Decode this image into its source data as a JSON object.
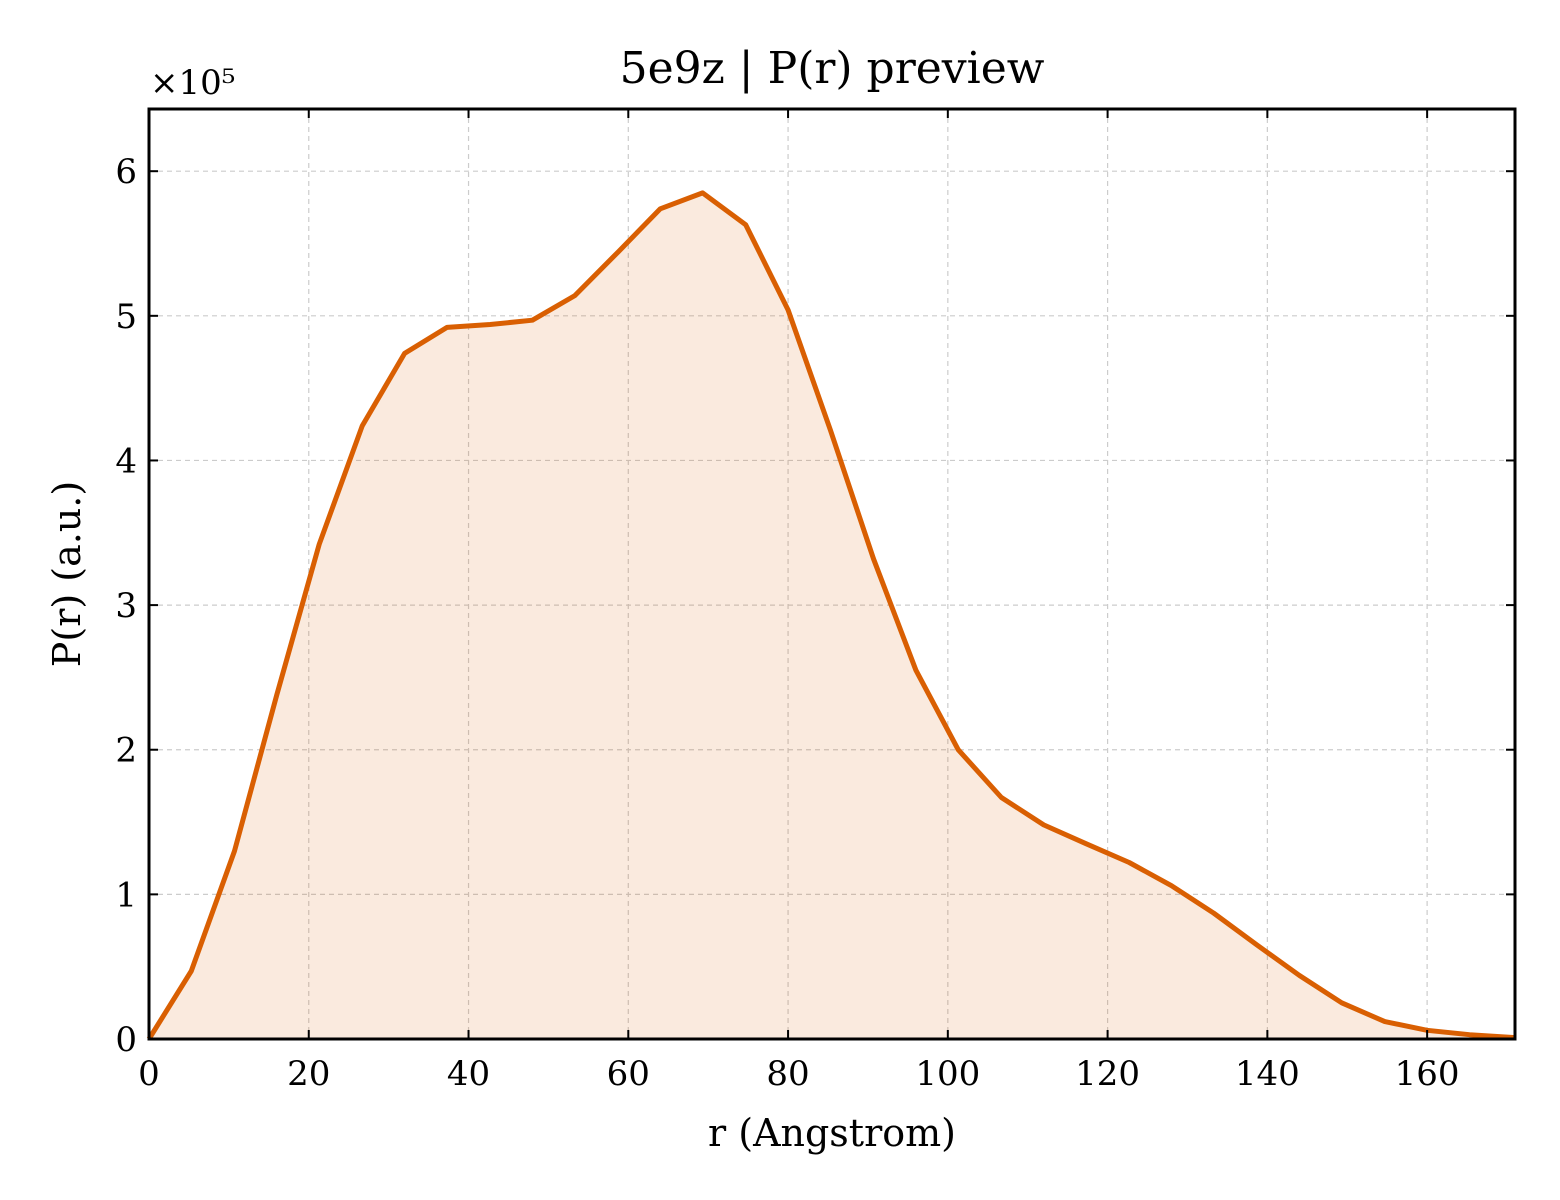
{
  "chart_data": {
    "type": "area",
    "title": "5e9z | P(r) preview",
    "xlabel": "r (Angstrom)",
    "ylabel": "P(r) (a.u.)",
    "y_offset_label": "×10⁵",
    "xlim": [
      0,
      171
    ],
    "ylim": [
      0,
      6.43
    ],
    "y_scale_multiplier": 100000,
    "xticks": [
      0,
      20,
      40,
      60,
      80,
      100,
      120,
      140,
      160
    ],
    "yticks": [
      0,
      1,
      2,
      3,
      4,
      5,
      6
    ],
    "grid": true,
    "line_color": "#d95f02",
    "fill_color": "#d95f02",
    "fill_opacity": 0.13,
    "series": [
      {
        "x": [
          0,
          5.3,
          10.7,
          16.0,
          21.3,
          26.7,
          32.0,
          37.3,
          42.7,
          48.0,
          53.3,
          58.7,
          64.0,
          69.3,
          74.7,
          80.0,
          85.3,
          90.7,
          96.0,
          101.3,
          106.7,
          112.0,
          117.3,
          122.7,
          128.0,
          133.3,
          138.7,
          144.0,
          149.3,
          154.7,
          160.0,
          165.3,
          171.0
        ],
        "y": [
          0,
          0.47,
          1.3,
          2.38,
          3.42,
          4.24,
          4.74,
          4.92,
          4.94,
          4.97,
          5.14,
          5.44,
          5.74,
          5.85,
          5.63,
          5.04,
          4.21,
          3.32,
          2.55,
          2.0,
          1.67,
          1.48,
          1.35,
          1.22,
          1.06,
          0.87,
          0.65,
          0.44,
          0.25,
          0.12,
          0.06,
          0.03,
          0.01
        ]
      }
    ]
  }
}
